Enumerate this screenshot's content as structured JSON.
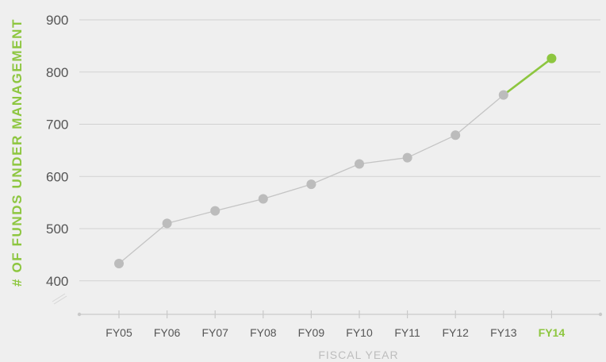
{
  "chart_data": {
    "type": "line",
    "title": "",
    "xlabel": "FISCAL YEAR",
    "ylabel": "# OF FUNDS UNDER MANAGEMENT",
    "categories": [
      "FY05",
      "FY06",
      "FY07",
      "FY08",
      "FY09",
      "FY10",
      "FY11",
      "FY12",
      "FY13",
      "FY14"
    ],
    "series": [
      {
        "values": [
          433,
          510,
          534,
          557,
          585,
          624,
          636,
          679,
          756,
          826
        ]
      }
    ],
    "highlight": {
      "category": "FY14",
      "color": "#8dc63f"
    },
    "yticks": [
      400,
      500,
      600,
      700,
      800,
      900
    ],
    "ylim": [
      380,
      900
    ],
    "axis_break": true,
    "grid": true,
    "colors": {
      "series": "#c4c4c4",
      "gridline": "#d2d2d2",
      "accent": "#8dc63f",
      "background": "#efefef"
    }
  }
}
